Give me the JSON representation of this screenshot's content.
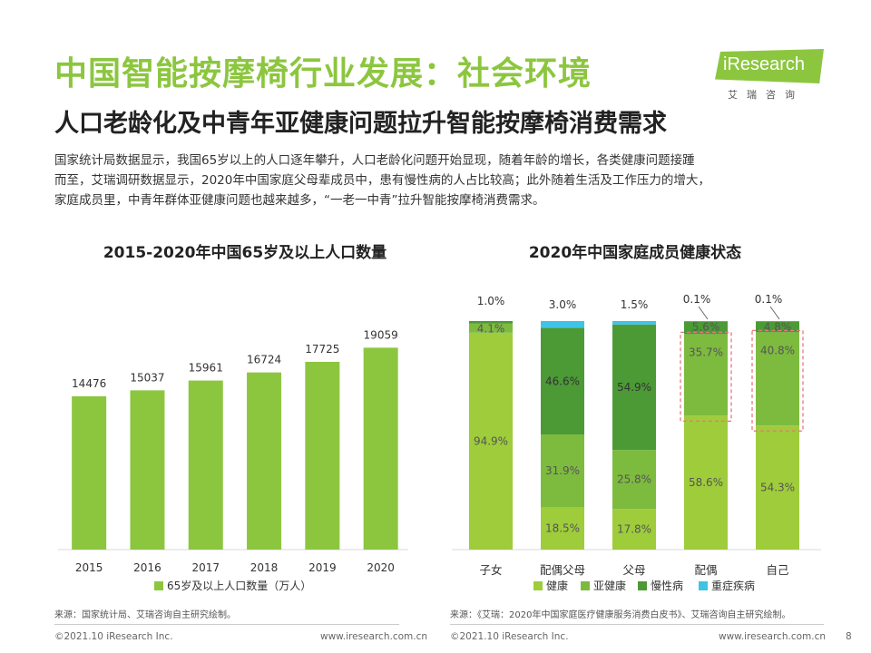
{
  "header": {
    "title": "中国智能按摩椅行业发展：社会环境",
    "subtitle": "人口老龄化及中青年亚健康问题拉升智能按摩椅消费需求"
  },
  "logo": {
    "name": "iResearch",
    "cn": "艾瑞咨询"
  },
  "paragraph": [
    "国家统计局数据显示，我国65岁以上的人口逐年攀升，人口老龄化问题开始显现，随着年龄的增长，各类健康问题接踵",
    "而至，艾瑞调研数据显示，2020年中国家庭父母辈成员中，患有慢性病的人占比较高；此外随着生活及工作压力的增大，",
    "家庭成员里，中青年群体亚健康问题也越来越多，“一老一中青”拉升智能按摩椅消费需求。"
  ],
  "colors": {
    "accent": "#8cc63f",
    "healthy": "#9fcc3b",
    "subhealthy": "#7dbb3f",
    "chronic": "#4b9a36",
    "critical": "#3fc4e6",
    "highlight": "#e8797b"
  },
  "chart_data": [
    {
      "type": "bar",
      "title": "2015-2020年中国65岁及以上人口数量",
      "categories": [
        "2015",
        "2016",
        "2017",
        "2018",
        "2019",
        "2020"
      ],
      "values": [
        14476,
        15037,
        15961,
        16724,
        17725,
        19059
      ],
      "series_name": "65岁及以上人口数量（万人）",
      "legend": "bottom"
    },
    {
      "type": "bar",
      "stacked": true,
      "title": "2020年中国家庭成员健康状态",
      "categories": [
        "子女",
        "配偶父母",
        "父母",
        "配偶",
        "自己"
      ],
      "series": [
        {
          "name": "健康",
          "values": [
            94.9,
            18.5,
            17.8,
            58.6,
            54.3
          ]
        },
        {
          "name": "亚健康",
          "values": [
            4.1,
            31.9,
            25.8,
            35.7,
            40.8
          ]
        },
        {
          "name": "慢性病",
          "values": [
            1.0,
            46.6,
            54.9,
            5.6,
            4.8
          ]
        },
        {
          "name": "重症疾病",
          "values": [
            0,
            3.0,
            1.5,
            0.1,
            0.1
          ]
        }
      ],
      "labels": [
        [
          "94.9%",
          "4.1%",
          "1.0%",
          ""
        ],
        [
          "18.5%",
          "31.9%",
          "46.6%",
          "3.0%"
        ],
        [
          "17.8%",
          "25.8%",
          "54.9%",
          "1.5%"
        ],
        [
          "58.6%",
          "35.7%",
          "5.6%",
          "0.1%"
        ],
        [
          "54.3%",
          "40.8%",
          "4.8%",
          "0.1%"
        ]
      ],
      "legend": "bottom",
      "highlighted_categories": [
        "配偶",
        "自己"
      ]
    }
  ],
  "sources": {
    "left": "来源：国家统计局、艾瑞咨询自主研究绘制。",
    "right": "来源：《艾瑞：2020年中国家庭医疗健康服务消费白皮书》、艾瑞咨询自主研究绘制。"
  },
  "footer": {
    "copyright": "©2021.10 iResearch Inc.",
    "url": "www.iresearch.com.cn",
    "page": "8"
  }
}
